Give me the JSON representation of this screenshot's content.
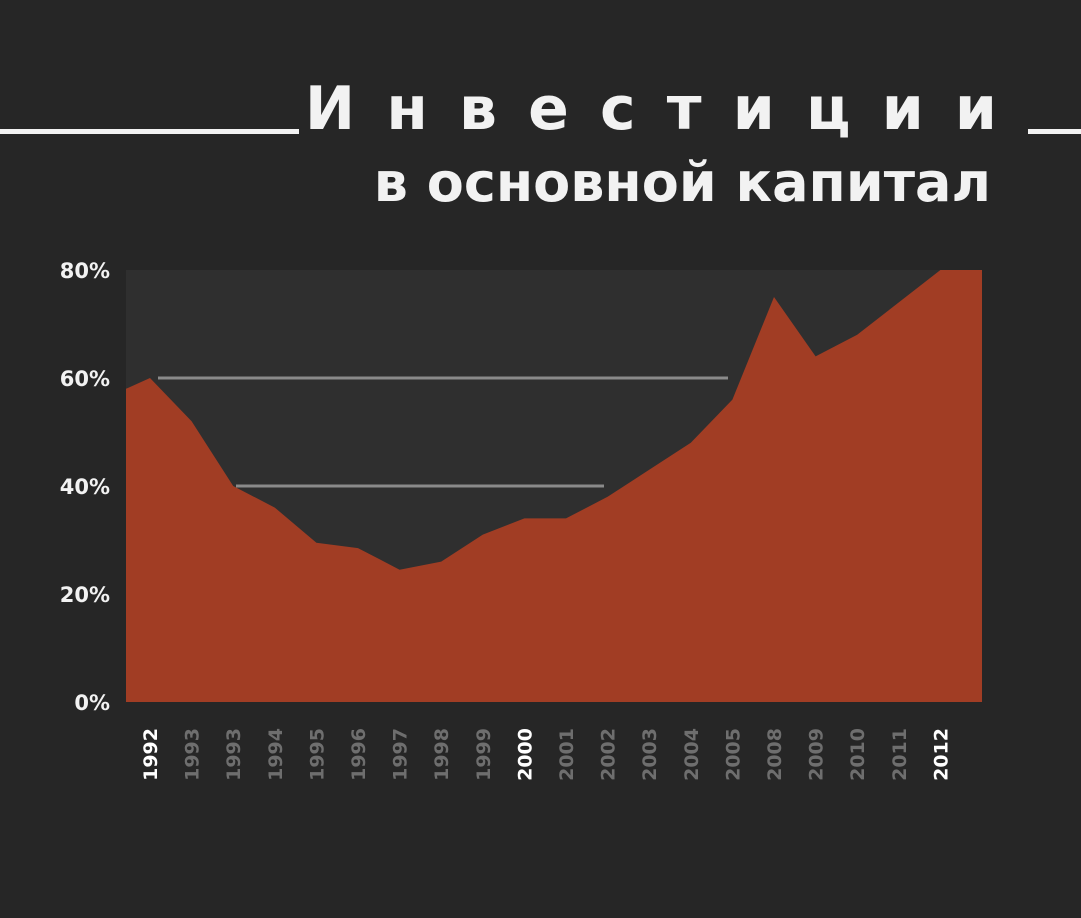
{
  "title": {
    "line1": "Инвестиции",
    "line2": "в основной капитал"
  },
  "colors": {
    "background": "#262626",
    "plot_area": "#2f2f2f",
    "area_fill": "#a13d24",
    "gridline": "#8a8a8a",
    "highlight_tick": "#ffffff",
    "muted_tick": "#6e6e6e"
  },
  "chart_data": {
    "type": "area",
    "title": "Инвестиции в основной капитал",
    "xlabel": "",
    "ylabel": "",
    "ylim": [
      0,
      80
    ],
    "y_ticks": [
      "0%",
      "20%",
      "40%",
      "60%",
      "80%"
    ],
    "y_tick_values": [
      0,
      20,
      40,
      60,
      80
    ],
    "grid": "partial horizontal lines at 40% and 60%",
    "highlighted_categories": [
      "1992",
      "2000",
      "2012"
    ],
    "categories": [
      "1992",
      "1993",
      "1993",
      "1994",
      "1995",
      "1996",
      "1997",
      "1998",
      "1999",
      "2000",
      "2001",
      "2002",
      "2003",
      "2004",
      "2005",
      "2008",
      "2009",
      "2010",
      "2011",
      "2012"
    ],
    "series": [
      {
        "values": [
          60,
          52,
          40,
          36,
          29.5,
          28.5,
          24.5,
          26,
          31,
          34,
          34,
          38,
          43,
          48,
          56,
          75,
          64,
          68,
          74,
          80
        ]
      }
    ]
  }
}
